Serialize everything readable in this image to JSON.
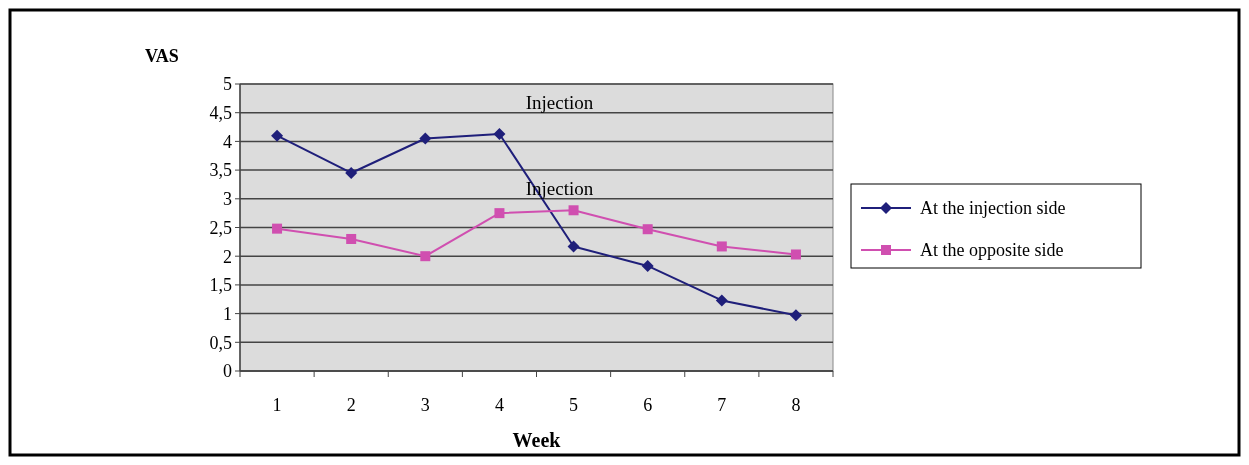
{
  "chart_data": {
    "type": "line",
    "ylabel": "VAS",
    "xlabel": "Week",
    "categories": [
      "1",
      "2",
      "3",
      "4",
      "5",
      "6",
      "7",
      "8"
    ],
    "series": [
      {
        "name": "At the injection side",
        "color": "#1f1f7a",
        "marker": "diamond",
        "values": [
          4.1,
          3.45,
          4.05,
          4.13,
          2.17,
          1.83,
          1.23,
          0.97
        ]
      },
      {
        "name": "At the opposite side",
        "color": "#d04fb0",
        "marker": "square",
        "values": [
          2.48,
          2.3,
          2.0,
          2.75,
          2.8,
          2.47,
          2.17,
          2.03
        ]
      }
    ],
    "ylim": [
      0,
      5
    ],
    "yticks": [
      0,
      {
        "value": 0.5,
        "label": "0,5"
      },
      1,
      {
        "value": 1.5,
        "label": "1,5"
      },
      2,
      {
        "value": 2.5,
        "label": "2,5"
      },
      3,
      {
        "value": 3.5,
        "label": "3,5"
      },
      4,
      {
        "value": 4.5,
        "label": "4,5"
      },
      5
    ],
    "grid": "y",
    "legend": "right",
    "annotations": [
      "Injection",
      "Injection"
    ]
  }
}
